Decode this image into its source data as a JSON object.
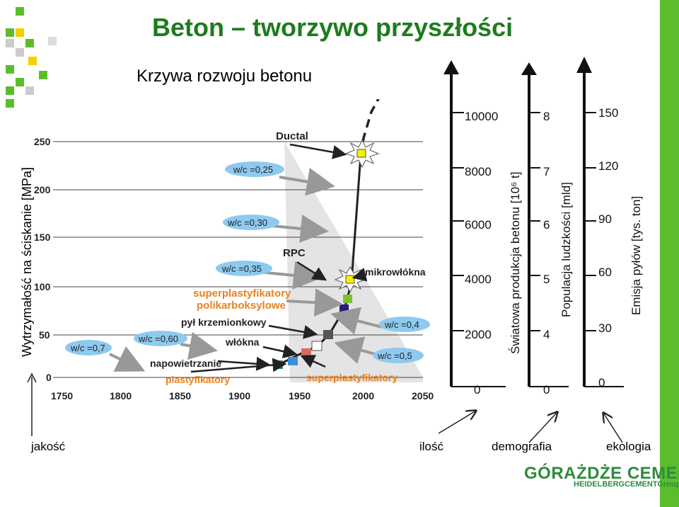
{
  "title": "Beton – tworzywo przyszłości",
  "subtitle": "Krzywa rozwoju betonu",
  "left_axis": {
    "label": "Wytrzymałość na ściskanie [MPa]",
    "ticks": [
      "250",
      "200",
      "150",
      "100",
      "50",
      "0"
    ],
    "x_ticks": [
      "1750",
      "1800",
      "1850",
      "1900",
      "1950",
      "2000",
      "2050"
    ]
  },
  "annotations": {
    "ductal": "Ductal",
    "rpc": "RPC",
    "mikrowlokna": "mikrowłókna",
    "superplast_poli_1": "superplastyfikatory",
    "superplast_poli_2": "polikarboksylowe",
    "pyl": "pył krzemionkowy",
    "wlokna": "włókna",
    "napowietrzanie": "napowietrzanie",
    "plastyfikatory": "plastyfikatory",
    "superplastyfikatory": "superplastyfikatory"
  },
  "wc_labels": {
    "wc025": "w/c =0,25",
    "wc030": "w/c =0,30",
    "wc035": "w/c =0,35",
    "wc060": "w/c =0,60",
    "wc07": "w/c =0,7",
    "wc04": "w/c =0,4",
    "wc05": "w/c =0,5"
  },
  "production_axis": {
    "label": "Światowa produkcja betonu [10⁶ t]",
    "ticks": [
      "10000",
      "8000",
      "6000",
      "4000",
      "2000",
      "0"
    ]
  },
  "population_axis": {
    "label": "Populacja ludzkości [mld]",
    "ticks": [
      "8",
      "7",
      "6",
      "5",
      "4",
      "0"
    ]
  },
  "dust_axis": {
    "label": "Emisja pyłów [tys. ton]",
    "ticks": [
      "150",
      "120",
      "90",
      "60",
      "30",
      "0"
    ]
  },
  "bottom_labels": {
    "jakosc": "jakość",
    "ilosc": "ilość",
    "demografia": "demografia",
    "ekologia": "ekologia"
  },
  "logo": {
    "main": "GÓRAŻDŻE CEMENT",
    "sub": "HEIDELBERGCEMENTGroup"
  },
  "colors": {
    "title": "#1e7b1e",
    "bubble": "#8ec9ef",
    "accent_green": "#5cbd2c",
    "orange_label": "#e8821e"
  }
}
